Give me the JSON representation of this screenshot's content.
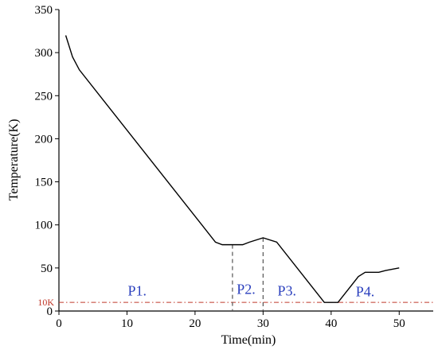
{
  "chart_data": {
    "type": "line",
    "xlabel": "Time(min)",
    "ylabel": "Temperature(K)",
    "xlim": [
      0,
      55
    ],
    "ylim": [
      0,
      350
    ],
    "x_ticks": [
      0,
      10,
      20,
      30,
      40,
      50
    ],
    "y_ticks": [
      0,
      50,
      100,
      150,
      200,
      250,
      300,
      350
    ],
    "y_tick_labels": [
      "0",
      "50",
      "100",
      "150",
      "200",
      "250",
      "300",
      "350"
    ],
    "series": [
      {
        "x": [
          1,
          2,
          3,
          23,
          24,
          25,
          27,
          28,
          30,
          32,
          39,
          41,
          43,
          44,
          45,
          47,
          48,
          50
        ],
        "y": [
          320,
          295,
          280,
          80,
          77,
          77,
          77,
          80,
          85,
          80,
          10,
          10,
          30,
          40,
          45,
          45,
          47,
          50
        ]
      }
    ],
    "phase_boundaries": [
      25.5,
      30
    ],
    "reference_line": {
      "y": 10,
      "label": "10K"
    },
    "phase_labels": [
      {
        "text": "P1.",
        "x": 11.5,
        "y": 18
      },
      {
        "text": "P2.",
        "x": 27.5,
        "y": 20
      },
      {
        "text": "P3.",
        "x": 33.5,
        "y": 18
      },
      {
        "text": "P4.",
        "x": 45,
        "y": 17
      }
    ]
  }
}
